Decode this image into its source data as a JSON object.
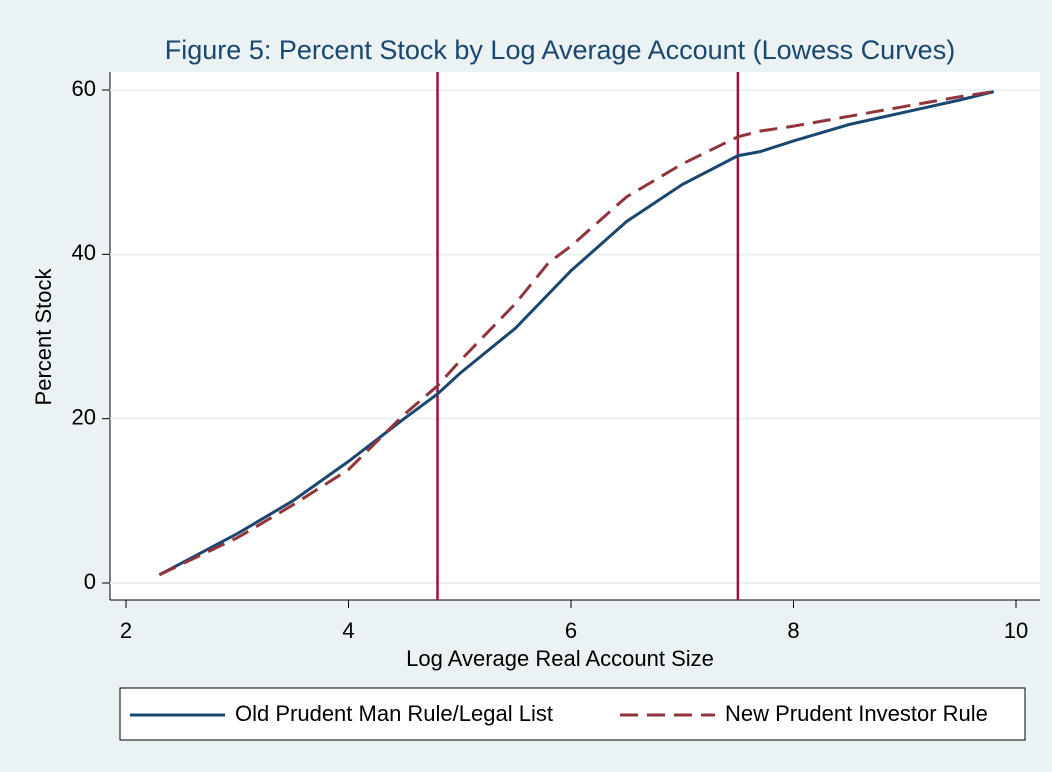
{
  "chart_data": {
    "type": "line",
    "title": "Figure 5: Percent Stock by Log Average Account (Lowess Curves)",
    "x_label": "Log Average Real Account Size",
    "y_label": "Percent Stock",
    "xlim": [
      2,
      10
    ],
    "xticks": [
      2,
      4,
      6,
      8,
      10
    ],
    "ylim": [
      0,
      60
    ],
    "yticks": [
      0,
      20,
      40,
      60
    ],
    "grid": true,
    "vlines": [
      4.8,
      7.5
    ],
    "vline_color": "#a50f3c",
    "legend": "bottom",
    "series": [
      {
        "name": "Old Prudent Man Rule/Legal List",
        "color": "#1a476f",
        "dash": false,
        "x": [
          2.3,
          3,
          3.5,
          4,
          4.5,
          4.8,
          5,
          5.5,
          6,
          6.5,
          7,
          7.5,
          7.7,
          8,
          8.5,
          9,
          9.5,
          9.8
        ],
        "values": [
          1,
          6,
          10,
          14.8,
          20,
          23,
          25.5,
          31,
          38,
          44,
          48.5,
          52,
          52.5,
          53.8,
          55.8,
          57.3,
          58.8,
          59.8
        ]
      },
      {
        "name": "New Prudent Investor Rule",
        "color": "#90353b",
        "dash": true,
        "x": [
          2.3,
          3,
          3.5,
          4,
          4.5,
          4.8,
          5,
          5.5,
          5.8,
          6,
          6.5,
          7,
          7.5,
          7.7,
          8,
          8.5,
          9,
          9.5,
          9.8
        ],
        "values": [
          1,
          5.5,
          9.5,
          13.8,
          20.5,
          24,
          27,
          34,
          39,
          41,
          47,
          51,
          54.3,
          55,
          55.6,
          56.8,
          58,
          59.2,
          59.8
        ]
      }
    ]
  }
}
